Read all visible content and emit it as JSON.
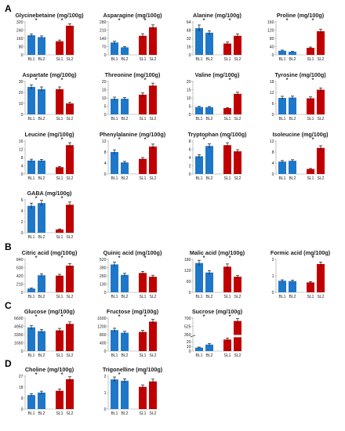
{
  "colors": {
    "BL": "#1f77c9",
    "SL": "#c00000"
  },
  "panel_labels": [
    "A",
    "B",
    "C",
    "D"
  ],
  "chart_data": [
    {
      "type": "bar",
      "title": "Glycinebetaine (mg/100g)",
      "categories": [
        "BL1",
        "BL2",
        "SL1",
        "SL2"
      ],
      "values": [
        190,
        172,
        132,
        283
      ],
      "errors": [
        14,
        12,
        12,
        20
      ],
      "yticks": [
        "0",
        "80",
        "160",
        "240",
        "320"
      ],
      "ylim": [
        0,
        320
      ],
      "significance": [
        "*",
        "*"
      ]
    },
    {
      "type": "bar",
      "title": "Asparagine (mg/100g)",
      "categories": [
        "BL1",
        "BL2",
        "SL1",
        "SL2"
      ],
      "values": [
        105,
        64,
        162,
        235
      ],
      "errors": [
        12,
        6,
        18,
        20
      ],
      "yticks": [
        "0",
        "70",
        "140",
        "210",
        "280"
      ],
      "ylim": [
        0,
        280
      ],
      "significance": [
        "*",
        "*"
      ]
    },
    {
      "type": "bar",
      "title": "Alanine (mg/100g)",
      "categories": [
        "BL1",
        "BL2",
        "SL1",
        "SL2"
      ],
      "values": [
        52,
        43,
        22,
        37
      ],
      "errors": [
        6,
        4,
        3,
        4
      ],
      "yticks": [
        "0",
        "16",
        "32",
        "48",
        "64"
      ],
      "ylim": [
        0,
        64
      ],
      "significance": [
        "*",
        "*"
      ]
    },
    {
      "type": "bar",
      "title": "Proline (mg/100g)",
      "categories": [
        "BL1",
        "BL2",
        "SL1",
        "SL2"
      ],
      "values": [
        20,
        15,
        34,
        115
      ],
      "errors": [
        3,
        2,
        4,
        10
      ],
      "yticks": [
        "0",
        "40",
        "80",
        "120",
        "160"
      ],
      "ylim": [
        0,
        160
      ],
      "significance": [
        "*",
        "*"
      ]
    },
    {
      "type": "bar",
      "title": "Aspartate (mg/100g)",
      "categories": [
        "BL1",
        "BL2",
        "SL1",
        "SL2"
      ],
      "values": [
        25,
        23,
        23,
        10
      ],
      "errors": [
        2,
        2,
        2,
        1
      ],
      "yticks": [
        "0",
        "10",
        "20",
        "30"
      ],
      "ylim": [
        0,
        30
      ],
      "significance": [
        "*",
        "*"
      ]
    },
    {
      "type": "bar",
      "title": "Threonine (mg/100g)",
      "categories": [
        "BL1",
        "BL2",
        "SL1",
        "SL2"
      ],
      "values": [
        9.5,
        9.5,
        12,
        17.5
      ],
      "errors": [
        1,
        0.8,
        1.2,
        1.5
      ],
      "yticks": [
        "0",
        "5",
        "10",
        "15",
        "20"
      ],
      "ylim": [
        0,
        20
      ],
      "significance": [
        "*"
      ]
    },
    {
      "type": "bar",
      "title": "Valine (mg/100g)",
      "categories": [
        "BL1",
        "BL2",
        "SL1",
        "SL2"
      ],
      "values": [
        4.5,
        4.4,
        3.8,
        12.5
      ],
      "errors": [
        0.4,
        0.4,
        0.3,
        1.0
      ],
      "yticks": [
        "0",
        "5",
        "10",
        "15",
        "20"
      ],
      "ylim": [
        0,
        20
      ],
      "significance": [
        "*"
      ]
    },
    {
      "type": "bar",
      "title": "Tyrosine (mg/100g)",
      "categories": [
        "BL1",
        "BL2",
        "SL1",
        "SL2"
      ],
      "values": [
        9,
        9.2,
        8.8,
        13.5
      ],
      "errors": [
        0.9,
        0.8,
        0.8,
        1.0
      ],
      "yticks": [
        "0",
        "6",
        "12",
        "18"
      ],
      "ylim": [
        0,
        18
      ],
      "significance": [
        "*",
        "*"
      ]
    },
    {
      "type": "bar",
      "title": "Leucine (mg/100g)",
      "categories": [
        "BL1",
        "BL2",
        "SL1",
        "SL2"
      ],
      "values": [
        6.5,
        6.5,
        3.3,
        14
      ],
      "errors": [
        0.7,
        0.6,
        0.4,
        1.2
      ],
      "yticks": [
        "0",
        "4",
        "8",
        "12",
        "16"
      ],
      "ylim": [
        0,
        16
      ],
      "significance": [
        "*"
      ]
    },
    {
      "type": "bar",
      "title": "Phenylalanine (mg/100g)",
      "categories": [
        "BL1",
        "BL2",
        "SL1",
        "SL2"
      ],
      "values": [
        8,
        4.2,
        5.5,
        10
      ],
      "errors": [
        0.8,
        0.4,
        0.5,
        0.9
      ],
      "yticks": [
        "0",
        "4",
        "8",
        "12"
      ],
      "ylim": [
        0,
        12
      ],
      "significance": [
        "*",
        "*"
      ]
    },
    {
      "type": "bar",
      "title": "Tryptophan (mg/100g)",
      "categories": [
        "BL1",
        "BL2",
        "SL1",
        "SL2"
      ],
      "values": [
        4.3,
        6.8,
        7.0,
        5.5
      ],
      "errors": [
        0.4,
        0.5,
        0.6,
        0.4
      ],
      "yticks": [
        "0",
        "2",
        "4",
        "6",
        "8"
      ],
      "ylim": [
        0,
        8
      ],
      "significance": [
        "*",
        "*"
      ]
    },
    {
      "type": "bar",
      "title": "Isoleucine (mg/100g)",
      "categories": [
        "BL1",
        "BL2",
        "SL1",
        "SL2"
      ],
      "values": [
        4.5,
        4.8,
        1.8,
        9.5
      ],
      "errors": [
        0.4,
        0.4,
        0.2,
        0.8
      ],
      "yticks": [
        "0",
        "4",
        "8",
        "12"
      ],
      "ylim": [
        0,
        12
      ],
      "significance": [
        "*"
      ]
    },
    {
      "type": "bar",
      "title": "GABA (mg/100g)",
      "categories": [
        "BL1",
        "BL2",
        "SL1",
        "SL2"
      ],
      "values": [
        4.9,
        5.4,
        0.6,
        5.1
      ],
      "errors": [
        0.5,
        0.5,
        0.1,
        0.5
      ],
      "yticks": [
        "0",
        "2",
        "4",
        "6"
      ],
      "ylim": [
        0,
        6
      ],
      "significance": [
        "*",
        "*"
      ]
    },
    {
      "type": "bar",
      "title": "Citric acid (mg/100g)",
      "categories": [
        "BL1",
        "BL2",
        "SL1",
        "SL2"
      ],
      "values": [
        95,
        435,
        425,
        680
      ],
      "errors": [
        12,
        35,
        35,
        50
      ],
      "yticks": [
        "0",
        "210",
        "420",
        "630",
        "840"
      ],
      "ylim": [
        0,
        840
      ],
      "significance": [
        "*",
        "*"
      ]
    },
    {
      "type": "bar",
      "title": "Quinic acid (mg/100g)",
      "categories": [
        "BL1",
        "BL2",
        "SL1",
        "SL2"
      ],
      "values": [
        440,
        275,
        305,
        245
      ],
      "errors": [
        35,
        25,
        25,
        25
      ],
      "yticks": [
        "0",
        "130",
        "260",
        "390",
        "520"
      ],
      "ylim": [
        0,
        520
      ],
      "significance": [
        "*",
        "*"
      ]
    },
    {
      "type": "bar",
      "title": "Malic acid (mg/100g)",
      "categories": [
        "BL1",
        "BL2",
        "SL1",
        "SL2"
      ],
      "values": [
        160,
        108,
        140,
        85
      ],
      "errors": [
        15,
        10,
        15,
        8
      ],
      "yticks": [
        "0",
        "60",
        "120",
        "180"
      ],
      "ylim": [
        0,
        180
      ],
      "significance": [
        "*",
        "*"
      ]
    },
    {
      "type": "bar",
      "title": "Formic acid (mg/100g)",
      "categories": [
        "BL1",
        "BL2",
        "SL1",
        "SL2"
      ],
      "values": [
        0.7,
        0.68,
        0.6,
        1.72
      ],
      "errors": [
        0.06,
        0.05,
        0.05,
        0.12
      ],
      "yticks": [
        "0",
        "1",
        "2"
      ],
      "ylim": [
        0,
        2
      ],
      "significance": [
        "*"
      ]
    },
    {
      "type": "bar",
      "title": "Glucose (mg/100g)",
      "categories": [
        "BL1",
        "BL2",
        "SL1",
        "SL2"
      ],
      "values": [
        4750,
        4000,
        4150,
        5450
      ],
      "errors": [
        350,
        350,
        400,
        400
      ],
      "yticks": [
        "0",
        "1650",
        "3300",
        "4950",
        "6600"
      ],
      "ylim": [
        0,
        6600
      ],
      "significance": [
        "*",
        "*"
      ]
    },
    {
      "type": "bar",
      "title": "Fructose (mg/100g)",
      "categories": [
        "BL1",
        "BL2",
        "SL1",
        "SL2"
      ],
      "values": [
        1020,
        890,
        930,
        1430
      ],
      "errors": [
        90,
        70,
        80,
        110
      ],
      "yticks": [
        "0",
        "400",
        "800",
        "1200",
        "1600"
      ],
      "ylim": [
        0,
        1600
      ],
      "significance": [
        "*",
        "*"
      ]
    },
    {
      "type": "bar",
      "title": "Sucrose (mg/100g)",
      "categories": [
        "BL1",
        "BL2",
        "SL1",
        "SL2"
      ],
      "values": [
        7.5,
        14,
        25,
        640
      ],
      "errors": [
        1,
        2,
        3,
        50
      ],
      "yticks": [
        "0",
        "10",
        "20",
        "350",
        "525",
        "700"
      ],
      "ylim": [
        0,
        700
      ],
      "broken_axis": {
        "lower": [
          0,
          30
        ],
        "upper": [
          350,
          700
        ]
      },
      "significance": [
        "*",
        "*"
      ]
    },
    {
      "type": "bar",
      "title": "Choline (mg/100g)",
      "categories": [
        "BL1",
        "BL2",
        "SL1",
        "SL2"
      ],
      "values": [
        11.5,
        13.5,
        15,
        24.5
      ],
      "errors": [
        1,
        1.2,
        1.5,
        2
      ],
      "yticks": [
        "0",
        "9",
        "18",
        "27"
      ],
      "ylim": [
        0,
        27
      ],
      "significance": [
        "*",
        "*"
      ]
    },
    {
      "type": "bar",
      "title": "Trigonelline (mg/100g)",
      "categories": [
        "BL1",
        "BL2",
        "SL1",
        "SL2"
      ],
      "values": [
        1.8,
        1.72,
        1.35,
        1.68
      ],
      "errors": [
        0.15,
        0.12,
        0.12,
        0.14
      ],
      "yticks": [
        "0",
        "1",
        "2"
      ],
      "ylim": [
        0,
        2
      ],
      "significance": [
        "*",
        "*"
      ]
    }
  ]
}
